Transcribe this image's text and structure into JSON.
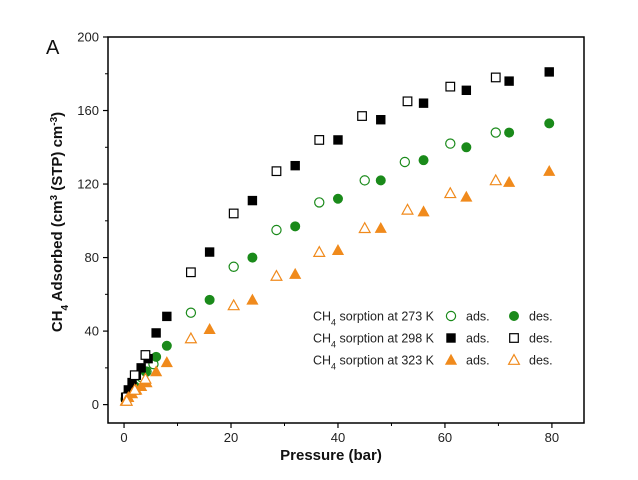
{
  "chart_data": {
    "type": "scatter",
    "panel_label": "A",
    "xlabel": "Pressure (bar)",
    "ylabel_main": "CH",
    "ylabel_sub": "4",
    "ylabel_rest": " Adsorbed (cm",
    "ylabel_sup1": "3",
    "ylabel_mid": " (STP) cm",
    "ylabel_sup2": "-3",
    "ylabel_end": ")",
    "xlim": [
      -3,
      86
    ],
    "ylim": [
      -10,
      200
    ],
    "xticks": [
      0,
      20,
      40,
      60,
      80
    ],
    "yticks": [
      0,
      40,
      80,
      120,
      160,
      200
    ],
    "colors": {
      "green": "#1a8a1a",
      "black": "#000000",
      "orange": "#f08a1c"
    },
    "legend": [
      {
        "label_main": "CH",
        "label_sub": "4",
        "label_rest": " sorption at 273 K",
        "ads_label": "ads.",
        "des_label": "des.",
        "color": "#1a8a1a",
        "ads_shape": "circle-open",
        "des_shape": "circle-filled"
      },
      {
        "label_main": "CH",
        "label_sub": "4",
        "label_rest": " sorption at 298 K",
        "ads_label": "ads.",
        "des_label": "des.",
        "color": "#000000",
        "ads_shape": "square-filled",
        "des_shape": "square-open"
      },
      {
        "label_main": "CH",
        "label_sub": "4",
        "label_rest": " sorption at 323 K",
        "ads_label": "ads.",
        "des_label": "des.",
        "color": "#f08a1c",
        "ads_shape": "triangle-filled",
        "des_shape": "triangle-open"
      }
    ],
    "series": [
      {
        "name": "273K-ads",
        "shape": "circle-open",
        "color": "#1a8a1a",
        "points": [
          [
            0.3,
            3
          ],
          [
            0.8,
            6
          ],
          [
            1.5,
            9
          ],
          [
            2.3,
            12
          ],
          [
            3.2,
            15
          ],
          [
            4.2,
            18
          ],
          [
            5.5,
            22
          ],
          [
            12.5,
            50
          ],
          [
            20.5,
            75
          ],
          [
            28.5,
            95
          ],
          [
            36.5,
            110
          ],
          [
            45,
            122
          ],
          [
            52.5,
            132
          ],
          [
            61,
            142
          ],
          [
            69.5,
            148
          ]
        ]
      },
      {
        "name": "273K-des",
        "shape": "circle-filled",
        "color": "#1a8a1a",
        "points": [
          [
            79.5,
            153
          ],
          [
            72,
            148
          ],
          [
            64,
            140
          ],
          [
            56,
            133
          ],
          [
            48,
            122
          ],
          [
            40,
            112
          ],
          [
            32,
            97
          ],
          [
            24,
            80
          ],
          [
            16,
            57
          ],
          [
            8,
            32
          ],
          [
            6,
            26
          ],
          [
            4,
            18
          ],
          [
            2,
            10
          ],
          [
            0.5,
            3
          ]
        ]
      },
      {
        "name": "298K-ads",
        "shape": "square-filled",
        "color": "#000000",
        "points": [
          [
            0.3,
            4
          ],
          [
            0.8,
            8
          ],
          [
            1.5,
            12
          ],
          [
            2.3,
            16
          ],
          [
            3.2,
            20
          ],
          [
            4.5,
            25
          ],
          [
            6,
            39
          ],
          [
            8,
            48
          ],
          [
            16,
            83
          ],
          [
            24,
            111
          ],
          [
            32,
            130
          ],
          [
            40,
            144
          ],
          [
            48,
            155
          ],
          [
            56,
            164
          ],
          [
            64,
            171
          ],
          [
            72,
            176
          ],
          [
            79.5,
            181
          ]
        ]
      },
      {
        "name": "298K-des",
        "shape": "square-open",
        "color": "#000000",
        "points": [
          [
            69.5,
            178
          ],
          [
            61,
            173
          ],
          [
            53,
            165
          ],
          [
            44.5,
            157
          ],
          [
            36.5,
            144
          ],
          [
            28.5,
            127
          ],
          [
            20.5,
            104
          ],
          [
            12.5,
            72
          ],
          [
            4,
            27
          ],
          [
            2,
            16
          ],
          [
            0.5,
            4
          ]
        ]
      },
      {
        "name": "323K-ads",
        "shape": "triangle-filled",
        "color": "#f08a1c",
        "points": [
          [
            0.3,
            2
          ],
          [
            0.8,
            4
          ],
          [
            1.5,
            6
          ],
          [
            2.3,
            8
          ],
          [
            3.2,
            10
          ],
          [
            4.2,
            12
          ],
          [
            6,
            18
          ],
          [
            8,
            23
          ],
          [
            16,
            41
          ],
          [
            24,
            57
          ],
          [
            32,
            71
          ],
          [
            40,
            84
          ],
          [
            48,
            96
          ],
          [
            56,
            105
          ],
          [
            64,
            113
          ],
          [
            72,
            121
          ],
          [
            79.5,
            127
          ]
        ]
      },
      {
        "name": "323K-des",
        "shape": "triangle-open",
        "color": "#f08a1c",
        "points": [
          [
            69.5,
            122
          ],
          [
            61,
            115
          ],
          [
            53,
            106
          ],
          [
            45,
            96
          ],
          [
            36.5,
            83
          ],
          [
            28.5,
            70
          ],
          [
            20.5,
            54
          ],
          [
            12.5,
            36
          ],
          [
            4,
            14
          ],
          [
            2,
            8
          ],
          [
            0.5,
            2
          ]
        ]
      }
    ]
  }
}
